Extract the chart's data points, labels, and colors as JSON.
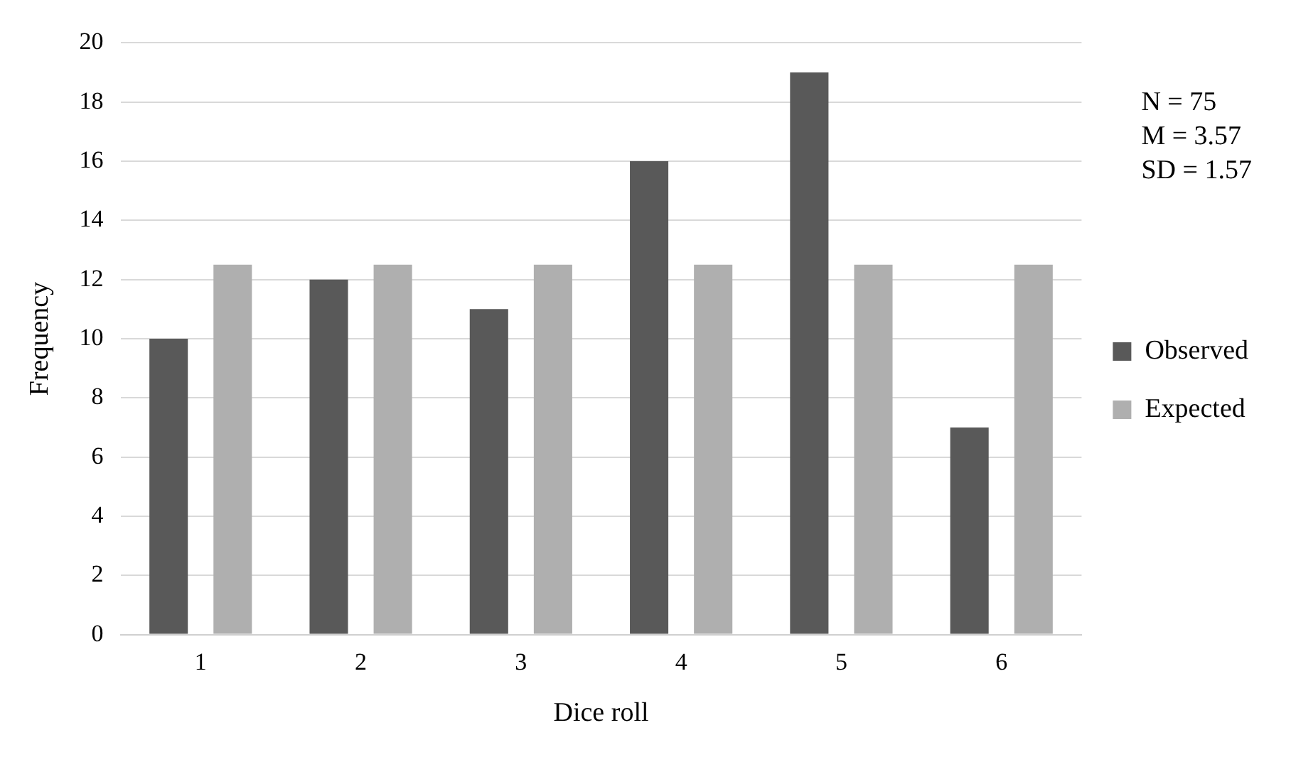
{
  "chart_data": {
    "type": "bar",
    "xlabel": "Dice roll",
    "ylabel": "Frequency",
    "categories": [
      "1",
      "2",
      "3",
      "4",
      "5",
      "6"
    ],
    "series": [
      {
        "name": "Observed",
        "color": "#595959",
        "values": [
          10,
          12,
          11,
          16,
          19,
          7
        ]
      },
      {
        "name": "Expected",
        "color": "#afafaf",
        "values": [
          12.5,
          12.5,
          12.5,
          12.5,
          12.5,
          12.5
        ]
      }
    ],
    "ylim": [
      0,
      20
    ],
    "yticks": [
      0,
      2,
      4,
      6,
      8,
      10,
      12,
      14,
      16,
      18,
      20
    ],
    "grid": "y",
    "legend": "right",
    "annotations": [
      "N = 75",
      "M = 3.57",
      "SD = 1.57"
    ]
  }
}
